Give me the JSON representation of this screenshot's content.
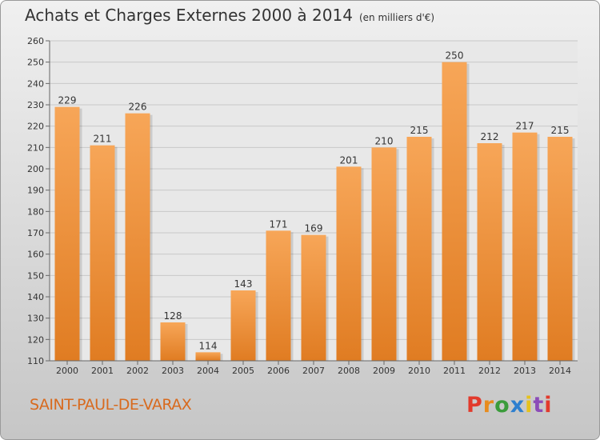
{
  "title": "Achats et Charges Externes 2000 à 2014",
  "unit": "(en milliers d'€)",
  "commune": "SAINT-PAUL-DE-VARAX",
  "logo_text": "Proxiti",
  "colors": {
    "bar_light": "#f7a658",
    "bar_dark": "#e07c22",
    "commune_text": "#d86a1e"
  },
  "chart_data": {
    "type": "bar",
    "title": "Achats et Charges Externes 2000 à 2014",
    "subtitle": "(en milliers d'€)",
    "categories": [
      "2000",
      "2001",
      "2002",
      "2003",
      "2004",
      "2005",
      "2006",
      "2007",
      "2008",
      "2009",
      "2010",
      "2011",
      "2012",
      "2013",
      "2014"
    ],
    "values": [
      229,
      211,
      226,
      128,
      114,
      143,
      171,
      169,
      201,
      210,
      215,
      250,
      212,
      217,
      215
    ],
    "ylim": [
      110,
      260
    ],
    "yticks": [
      110,
      120,
      130,
      140,
      150,
      160,
      170,
      180,
      190,
      200,
      210,
      220,
      230,
      240,
      250,
      260
    ],
    "grid": true,
    "legend": "none"
  }
}
